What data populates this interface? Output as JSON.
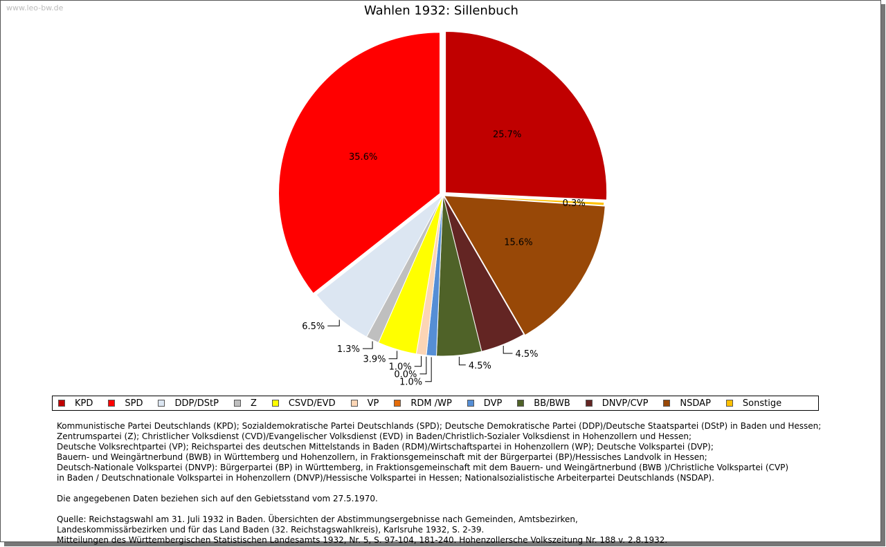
{
  "watermark": "www.leo-bw.de",
  "chart_data": {
    "type": "pie",
    "title": "Wahlen 1932: Sillenbuch",
    "start_angle": "top, clockwise",
    "slices": [
      {
        "name": "KPD",
        "value": 25.7,
        "label": "25.7%",
        "color": "#c00000"
      },
      {
        "name": "Sonstige",
        "value": 0.3,
        "label": "0.3%",
        "color": "#ffc000"
      },
      {
        "name": "NSDAP",
        "value": 15.6,
        "label": "15.6%",
        "color": "#984807"
      },
      {
        "name": "DNVP/CVP",
        "value": 4.5,
        "label": "4.5%",
        "color": "#632523"
      },
      {
        "name": "BB/BWB",
        "value": 4.5,
        "label": "4.5%",
        "color": "#4f6228"
      },
      {
        "name": "DVP",
        "value": 1.0,
        "label": "1.0%",
        "color": "#558ed5"
      },
      {
        "name": "RDM /WP",
        "value": 0.0,
        "label": "0.0%",
        "color": "#e46c0a"
      },
      {
        "name": "VP",
        "value": 1.0,
        "label": "1.0%",
        "color": "#fcd5b5"
      },
      {
        "name": "CSVD/EVD",
        "value": 3.9,
        "label": "3.9%",
        "color": "#ffff00"
      },
      {
        "name": "Z",
        "value": 1.3,
        "label": "1.3%",
        "color": "#bfbfbf"
      },
      {
        "name": "DDP/DStP",
        "value": 6.5,
        "label": "6.5%",
        "color": "#dce6f2"
      },
      {
        "name": "SPD",
        "value": 35.6,
        "label": "35.6%",
        "color": "#ff0000"
      }
    ],
    "legend_order": [
      "KPD",
      "SPD",
      "DDP/DStP",
      "Z",
      "CSVD/EVD",
      "VP",
      "RDM /WP",
      "DVP",
      "BB/BWB",
      "DNVP/CVP",
      "NSDAP",
      "Sonstige"
    ],
    "legend_position": "bottom"
  },
  "notes": {
    "lines": [
      "Kommunistische Partei Deutschlands (KPD); Sozialdemokratische Partei Deutschlands (SPD); Deutsche Demokratische Partei (DDP)/Deutsche Staatspartei (DStP) in Baden und Hessen;",
      "Zentrumspartei (Z); Christlicher Volksdienst (CVD)/Evangelischer Volksdienst (EVD) in Baden/Christlich-Sozialer Volksdienst in Hohenzollern und Hessen;",
      "Deutsche Volksrechtpartei (VP); Reichspartei des deutschen Mittelstands in Baden (RDM)/Wirtschaftspartei in Hohenzollern (WP); Deutsche Volkspartei (DVP);",
      "Bauern- und Weingärtnerbund (BWB) in Württemberg und Hohenzollern, in Fraktionsgemeinschaft mit der Bürgerpartei (BP)/Hessisches Landvolk in Hessen;",
      "Deutsch-Nationale Volkspartei (DNVP): Bürgerpartei (BP) in Württemberg, in Fraktionsgemeinschaft mit dem Bauern- und Weingärtnerbund (BWB )/Christliche Volkspartei (CVP)",
      "in Baden / Deutschnationale Volkspartei in Hohenzollern (DNVP)/Hessische Volkspartei in Hessen; Nationalsozialistische Arbeiterpartei Deutschlands (NSDAP)."
    ],
    "stand": "Die angegebenen Daten beziehen sich auf den Gebietsstand vom 27.5.1970.",
    "source": [
      "Quelle: Reichstagswahl am 31. Juli 1932 in Baden. Übersichten der Abstimmungsergebnisse nach Gemeinden, Amtsbezirken,",
      "Landeskommissärbezirken und für das Land Baden (32. Reichstagswahlkreis), Karlsruhe 1932, S. 2-39.",
      "Mitteilungen des Württembergischen Statistischen Landesamts 1932, Nr. 5, S. 97-104, 181-240. Hohenzollersche Volkszeitung Nr. 188 v. 2.8.1932."
    ]
  }
}
